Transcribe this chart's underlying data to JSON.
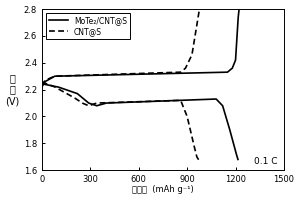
{
  "ylabel": "电\n压\n(V)",
  "xlabel": "比容量  (mAh g⁻¹)",
  "xlim": [
    0,
    1500
  ],
  "ylim": [
    1.6,
    2.8
  ],
  "xticks": [
    0,
    300,
    600,
    900,
    1200,
    1500
  ],
  "yticks": [
    1.6,
    1.8,
    2.0,
    2.2,
    2.4,
    2.6,
    2.8
  ],
  "annotation": "0.1 C",
  "legend": [
    "MoTe₂/CNT@S",
    "CNT@S"
  ]
}
